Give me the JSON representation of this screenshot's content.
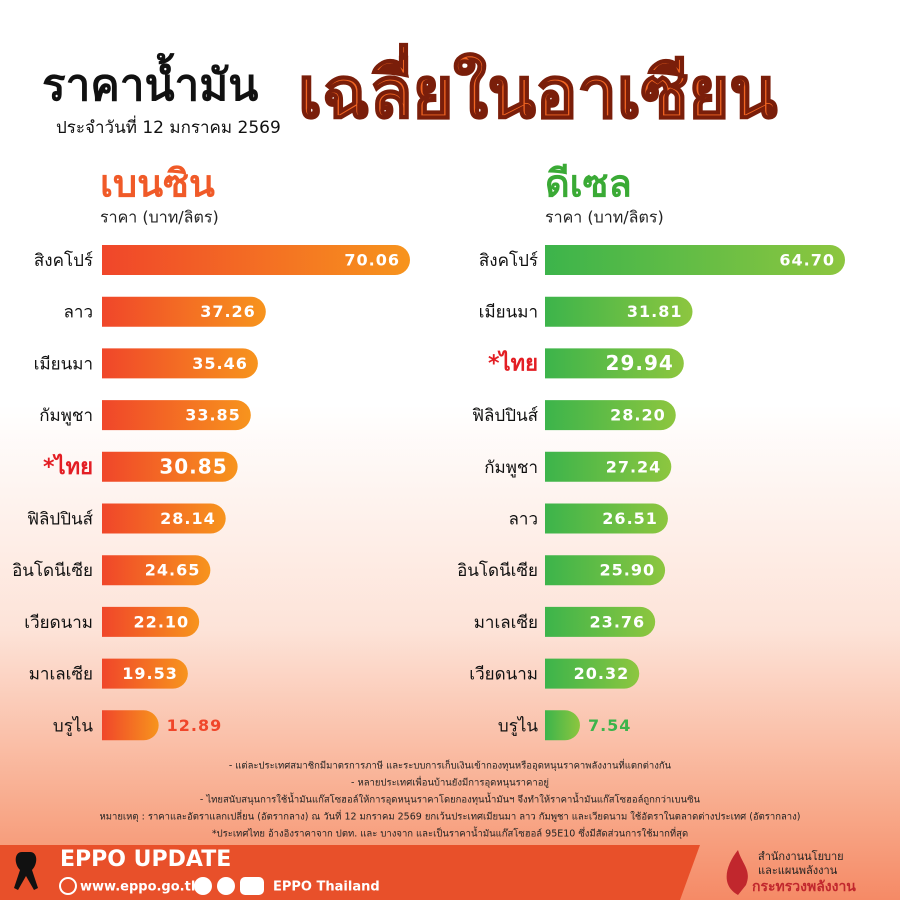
{
  "header": {
    "title_part1": "ราคาน้ำมัน",
    "title_part2": "เฉลี่ยในอาเซียน",
    "date": "ประจำวันที่  12 มกราคม 2569"
  },
  "chart_data": [
    {
      "type": "bar",
      "title": "เบนซิน",
      "subtitle": "ราคา (บาท/ลิตร)",
      "title_color": "#f05a28",
      "colors": [
        "#f0462a",
        "#f7941d"
      ],
      "highlight_color": "#e31e24",
      "categories": [
        "สิงคโปร์",
        "ลาว",
        "เมียนมา",
        "กัมพูชา",
        "*ไทย",
        "ฟิลิปปินส์",
        "อินโดนีเซีย",
        "เวียดนาม",
        "มาเลเซีย",
        "บรูไน"
      ],
      "values": [
        70.06,
        37.26,
        35.46,
        33.85,
        30.85,
        28.14,
        24.65,
        22.1,
        19.53,
        12.89
      ],
      "value_labels": [
        "70.06",
        "37.26",
        "35.46",
        "33.85",
        "30.85",
        "28.14",
        "24.65",
        "22.10",
        "19.53",
        "12.89"
      ]
    },
    {
      "type": "bar",
      "title": "ดีเซล",
      "subtitle": "ราคา (บาท/ลิตร)",
      "title_color": "#3aaa35",
      "colors": [
        "#3cb44b",
        "#8dc63f"
      ],
      "highlight_color": "#e31e24",
      "categories": [
        "สิงคโปร์",
        "เมียนมา",
        "*ไทย",
        "ฟิลิปปินส์",
        "กัมพูชา",
        "ลาว",
        "อินโดนีเซีย",
        "มาเลเซีย",
        "เวียดนาม",
        "บรูไน"
      ],
      "values": [
        64.7,
        31.81,
        29.94,
        28.2,
        27.24,
        26.51,
        25.9,
        23.76,
        20.32,
        7.54
      ],
      "value_labels": [
        "64.70",
        "31.81",
        "29.94",
        "28.20",
        "27.24",
        "26.51",
        "25.90",
        "23.76",
        "20.32",
        "7.54"
      ]
    }
  ],
  "notes": [
    "- แต่ละประเทศสมาชิกมีมาตรการภาษี และระบบการเก็บเงินเข้ากองทุนหรืออุดหนุนราคาพลังงานที่แตกต่างกัน",
    "- หลายประเทศเพื่อนบ้านยังมีการอุดหนุนราคาอยู่",
    "- ไทยสนับสนุนการใช้น้ำมันแก๊สโซฮอล์ให้การอุดหนุนราคาโดยกองทุนน้ำมันฯ จึงทำให้ราคาน้ำมันแก๊สโซฮอล์ถูกกว่าเบนซิน",
    "หมายเหตุ : ราคาและอัตราแลกเปลี่ยน (อัตรากลาง) ณ วันที่ 12 มกราคม 2569 ยกเว้นประเทศเมียนมา ลาว กัมพูชา และเวียดนาม ใช้อัตราในตลาดต่างประเทศ (อัตรากลาง)",
    "*ประเทศไทย อ้างอิงราคาจาก ปตท. และ บางจาก และเป็นราคาน้ำมันแก๊สโซฮอล์ 95E10 ซึ่งมีสัดส่วนการใช้มากที่สุด"
  ],
  "footer": {
    "brand": "EPPO UPDATE",
    "website": "www.eppo.go.th",
    "social": "EPPO Thailand",
    "org_line1": "สำนักงานนโยบาย",
    "org_line2": "และแผนพลังงาน",
    "ministry": "กระทรวงพลังงาน"
  }
}
